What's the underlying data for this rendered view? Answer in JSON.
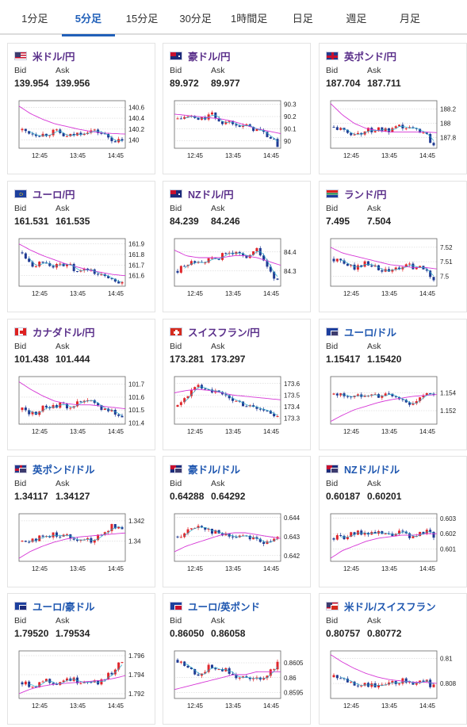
{
  "tabs": [
    {
      "label": "1分足",
      "active": false
    },
    {
      "label": "5分足",
      "active": true
    },
    {
      "label": "15分足",
      "active": false
    },
    {
      "label": "30分足",
      "active": false
    },
    {
      "label": "1時間足",
      "active": false
    },
    {
      "label": "日足",
      "active": false
    },
    {
      "label": "週足",
      "active": false
    },
    {
      "label": "月足",
      "active": false
    }
  ],
  "bid_label": "Bid",
  "ask_label": "Ask",
  "x_ticks": [
    "12:45",
    "13:45",
    "14:45"
  ],
  "colors": {
    "up": "#e0262b",
    "down": "#1f3a93",
    "ma_short": "#2aa9c9",
    "ma_long": "#d636d6",
    "tab_accent": "#2160b9"
  },
  "pairs": [
    {
      "name": "米ドル/円",
      "flag": "us",
      "bid": "139.954",
      "ask": "139.956",
      "ticks": [
        "140.6",
        "140.4",
        "140.2",
        "140"
      ],
      "ymin": 139.85,
      "ymax": 140.72,
      "trend": [
        140.18,
        140.12,
        140.1,
        140.16,
        140.05,
        140.12,
        140.18,
        140.14,
        140.02,
        139.96
      ],
      "ma_long": [
        140.62,
        140.48,
        140.38,
        140.3,
        140.25,
        140.2,
        140.16,
        140.13,
        140.12,
        140.11
      ]
    },
    {
      "name": "豪ドル/円",
      "flag": "au",
      "bid": "89.972",
      "ask": "89.977",
      "ticks": [
        "90.3",
        "90.2",
        "90.1",
        "90"
      ],
      "ymin": 89.94,
      "ymax": 90.33,
      "trend": [
        90.18,
        90.2,
        90.17,
        90.22,
        90.15,
        90.16,
        90.12,
        90.1,
        90.05,
        89.97
      ],
      "ma_long": [
        90.22,
        90.21,
        90.2,
        90.19,
        90.18,
        90.16,
        90.13,
        90.1,
        90.08,
        90.06
      ]
    },
    {
      "name": "英ポンド/円",
      "flag": "uk",
      "bid": "187.704",
      "ask": "187.711",
      "ticks": [
        "188.2",
        "188",
        "187.8"
      ],
      "ymin": 187.65,
      "ymax": 188.32,
      "trend": [
        187.95,
        187.88,
        187.85,
        187.9,
        187.92,
        187.88,
        187.95,
        187.92,
        187.9,
        187.7
      ],
      "ma_long": [
        188.28,
        188.12,
        188.0,
        187.93,
        187.9,
        187.88,
        187.88,
        187.88,
        187.88,
        187.87
      ]
    },
    {
      "name": "ユーロ/円",
      "flag": "eu",
      "bid": "161.531",
      "ask": "161.535",
      "ticks": [
        "161.9",
        "161.8",
        "161.7",
        "161.6"
      ],
      "ymin": 161.5,
      "ymax": 161.95,
      "trend": [
        161.82,
        161.7,
        161.74,
        161.68,
        161.72,
        161.62,
        161.66,
        161.6,
        161.58,
        161.53
      ],
      "ma_long": [
        161.9,
        161.84,
        161.79,
        161.75,
        161.71,
        161.68,
        161.65,
        161.63,
        161.61,
        161.6
      ]
    },
    {
      "name": "NZドル/円",
      "flag": "nz",
      "bid": "84.239",
      "ask": "84.246",
      "ticks": [
        "84.4",
        "84.3"
      ],
      "ymin": 84.22,
      "ymax": 84.47,
      "trend": [
        84.3,
        84.34,
        84.36,
        84.35,
        84.38,
        84.4,
        84.37,
        84.42,
        84.33,
        84.24
      ],
      "ma_long": [
        84.41,
        84.38,
        84.37,
        84.37,
        84.37,
        84.38,
        84.38,
        84.37,
        84.35,
        84.33
      ]
    },
    {
      "name": "ランド/円",
      "flag": "za",
      "bid": "7.495",
      "ask": "7.504",
      "ticks": [
        "7.52",
        "7.51",
        "7.5"
      ],
      "ymin": 7.493,
      "ymax": 7.526,
      "trend": [
        7.512,
        7.508,
        7.506,
        7.51,
        7.504,
        7.503,
        7.506,
        7.507,
        7.505,
        7.498
      ],
      "ma_long": [
        7.52,
        7.516,
        7.514,
        7.512,
        7.51,
        7.508,
        7.507,
        7.506,
        7.506,
        7.505
      ]
    },
    {
      "name": "カナダドル/円",
      "flag": "ca",
      "bid": "101.438",
      "ask": "101.444",
      "ticks": [
        "101.7",
        "101.6",
        "101.5",
        "101.4"
      ],
      "ymin": 101.39,
      "ymax": 101.76,
      "trend": [
        101.5,
        101.47,
        101.52,
        101.54,
        101.53,
        101.55,
        101.57,
        101.52,
        101.5,
        101.44
      ],
      "ma_long": [
        101.72,
        101.66,
        101.61,
        101.57,
        101.55,
        101.54,
        101.54,
        101.53,
        101.52,
        101.51
      ]
    },
    {
      "name": "スイスフラン/円",
      "flag": "ch",
      "bid": "173.281",
      "ask": "173.297",
      "ticks": [
        "173.6",
        "173.5",
        "173.4",
        "173.3"
      ],
      "ymin": 173.25,
      "ymax": 173.66,
      "trend": [
        173.4,
        173.52,
        173.58,
        173.55,
        173.5,
        173.46,
        173.42,
        173.4,
        173.36,
        173.3
      ],
      "ma_long": [
        173.52,
        173.54,
        173.55,
        173.54,
        173.52,
        173.5,
        173.49,
        173.48,
        173.47,
        173.46
      ]
    },
    {
      "name": "ユーロ/ドル",
      "flag": "euus",
      "bid": "1.15417",
      "ask": "1.15420",
      "ticks": [
        "1.154",
        "1.152"
      ],
      "ymin": 1.1505,
      "ymax": 1.1558,
      "trend": [
        1.1538,
        1.1537,
        1.1535,
        1.154,
        1.1536,
        1.1538,
        1.1532,
        1.1528,
        1.1535,
        1.154
      ],
      "ma_long": [
        1.1508,
        1.1515,
        1.1521,
        1.1525,
        1.1529,
        1.1532,
        1.1534,
        1.1536,
        1.1537,
        1.1538
      ]
    },
    {
      "name": "英ポンド/ドル",
      "flag": "ukus",
      "bid": "1.34117",
      "ask": "1.34127",
      "ticks": [
        "1.342",
        "1.34"
      ],
      "ymin": 1.338,
      "ymax": 1.3427,
      "trend": [
        1.34,
        1.3402,
        1.3404,
        1.3407,
        1.3405,
        1.3403,
        1.34,
        1.3405,
        1.3415,
        1.3412
      ],
      "ma_long": [
        1.3383,
        1.339,
        1.3395,
        1.3399,
        1.3402,
        1.3404,
        1.3405,
        1.3406,
        1.3407,
        1.3408
      ]
    },
    {
      "name": "豪ドル/ドル",
      "flag": "auus",
      "bid": "0.64288",
      "ask": "0.64292",
      "ticks": [
        "0.644",
        "0.643",
        "0.642"
      ],
      "ymin": 0.6417,
      "ymax": 0.6442,
      "trend": [
        0.643,
        0.6433,
        0.6436,
        0.6433,
        0.6431,
        0.643,
        0.6431,
        0.6429,
        0.6426,
        0.6429
      ],
      "ma_long": [
        0.6422,
        0.6425,
        0.6427,
        0.6429,
        0.6431,
        0.6432,
        0.6432,
        0.6431,
        0.643,
        0.6429
      ]
    },
    {
      "name": "NZドル/ドル",
      "flag": "nzus",
      "bid": "0.60187",
      "ask": "0.60201",
      "ticks": [
        "0.603",
        "0.602",
        "0.601"
      ],
      "ymin": 0.6002,
      "ymax": 0.6033,
      "trend": [
        0.6017,
        0.6018,
        0.602,
        0.6021,
        0.602,
        0.6019,
        0.6021,
        0.6017,
        0.6022,
        0.6019
      ],
      "ma_long": [
        0.6004,
        0.6009,
        0.6012,
        0.6015,
        0.6017,
        0.6018,
        0.6019,
        0.6019,
        0.602,
        0.602
      ]
    },
    {
      "name": "ユーロ/豪ドル",
      "flag": "euau",
      "bid": "1.79520",
      "ask": "1.79534",
      "ticks": [
        "1.796",
        "1.794",
        "1.792"
      ],
      "ymin": 1.7915,
      "ymax": 1.7965,
      "trend": [
        1.7932,
        1.7928,
        1.7935,
        1.7931,
        1.7936,
        1.7933,
        1.7934,
        1.7932,
        1.7942,
        1.7954
      ],
      "ma_long": [
        1.792,
        1.7925,
        1.7928,
        1.793,
        1.7931,
        1.7932,
        1.7933,
        1.7934,
        1.7936,
        1.7939
      ]
    },
    {
      "name": "ユーロ/英ポンド",
      "flag": "euuk",
      "bid": "0.86050",
      "ask": "0.86058",
      "ticks": [
        "0.8605",
        "0.86",
        "0.8595"
      ],
      "ymin": 0.8593,
      "ymax": 0.8609,
      "trend": [
        0.8606,
        0.8603,
        0.8601,
        0.8604,
        0.8603,
        0.8601,
        0.86,
        0.8599,
        0.8601,
        0.8605
      ],
      "ma_long": [
        0.8596,
        0.8597,
        0.8598,
        0.8599,
        0.86,
        0.8601,
        0.8601,
        0.8602,
        0.8602,
        0.8602
      ]
    },
    {
      "name": "米ドル/スイスフラン",
      "flag": "usch",
      "bid": "0.80757",
      "ask": "0.80772",
      "ticks": [
        "0.81",
        "0.808"
      ],
      "ymin": 0.8068,
      "ymax": 0.8106,
      "trend": [
        0.8085,
        0.8082,
        0.808,
        0.8079,
        0.8078,
        0.8079,
        0.8082,
        0.8081,
        0.8083,
        0.8077
      ],
      "ma_long": [
        0.8103,
        0.8097,
        0.8092,
        0.8088,
        0.8085,
        0.8083,
        0.8082,
        0.8081,
        0.8081,
        0.808
      ]
    }
  ]
}
